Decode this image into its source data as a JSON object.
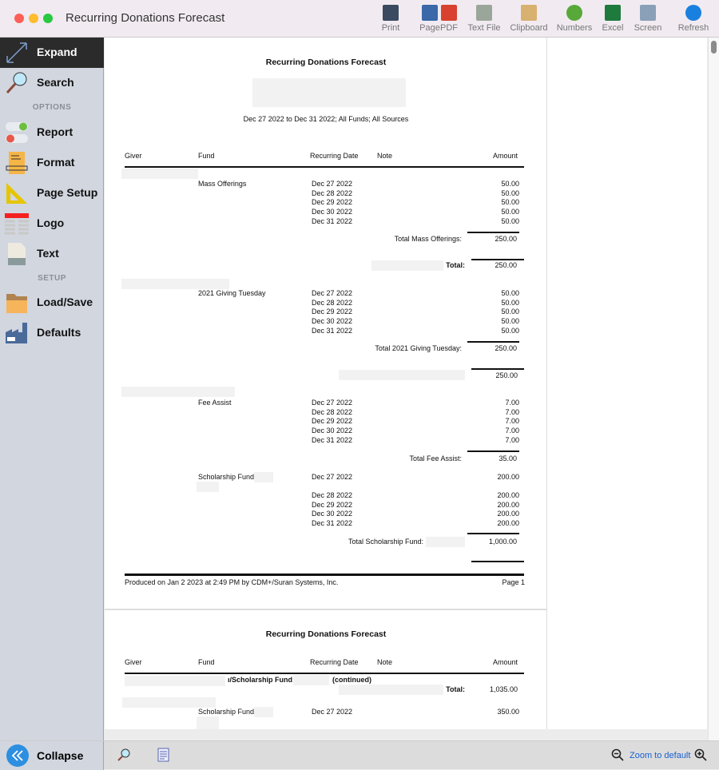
{
  "window": {
    "title": "Recurring Donations Forecast"
  },
  "toolbar": [
    {
      "label": "Print",
      "icon": "printer-icon"
    },
    {
      "label": "Page",
      "icon": "page-icon"
    },
    {
      "label": "PDF",
      "icon": "pdf-icon"
    },
    {
      "label": "Text File",
      "icon": "text-file-icon"
    },
    {
      "label": "Clipboard",
      "icon": "clipboard-icon"
    },
    {
      "label": "Numbers",
      "icon": "numbers-icon"
    },
    {
      "label": "Excel",
      "icon": "excel-icon"
    },
    {
      "label": "Screen",
      "icon": "screen-icon"
    },
    {
      "label": "Refresh",
      "icon": "refresh-icon"
    }
  ],
  "sidebar": {
    "expand": "Expand",
    "search": "Search",
    "options_header": "OPTIONS",
    "report": "Report",
    "format": "Format",
    "page_setup": "Page Setup",
    "logo": "Logo",
    "text": "Text",
    "setup_header": "SETUP",
    "load_save": "Load/Save",
    "defaults": "Defaults",
    "collapse": "Collapse"
  },
  "bottom": {
    "zoom_default": "Zoom to default"
  },
  "report": {
    "title": "Recurring Donations Forecast",
    "subtitle": "Dec 27 2022 to Dec 31 2022; All Funds; All Sources",
    "headers": {
      "giver": "Giver",
      "fund": "Fund",
      "date": "Recurring Date",
      "note": "Note",
      "amount": "Amount"
    },
    "g1": {
      "fund": "Mass Offerings",
      "dates": [
        "Dec 27 2022",
        "Dec 28 2022",
        "Dec 29 2022",
        "Dec 30 2022",
        "Dec 31 2022"
      ],
      "amounts": [
        "50.00",
        "50.00",
        "50.00",
        "50.00",
        "50.00"
      ],
      "fund_total_label": "Total Mass Offerings:",
      "fund_total": "250.00",
      "total_label": "Total:",
      "total": "250.00"
    },
    "g2": {
      "fund": "2021 Giving Tuesday",
      "dates": [
        "Dec 27 2022",
        "Dec 28 2022",
        "Dec 29 2022",
        "Dec 30 2022",
        "Dec 31 2022"
      ],
      "amounts": [
        "50.00",
        "50.00",
        "50.00",
        "50.00",
        "50.00"
      ],
      "fund_total_label": "Total 2021 Giving Tuesday:",
      "fund_total": "250.00",
      "total": "250.00"
    },
    "g3": {
      "fund": "Fee Assist",
      "dates": [
        "Dec 27 2022",
        "Dec 28 2022",
        "Dec 29 2022",
        "Dec 30 2022",
        "Dec 31 2022"
      ],
      "amounts": [
        "7.00",
        "7.00",
        "7.00",
        "7.00",
        "7.00"
      ],
      "fund_total_label": "Total Fee Assist:",
      "fund_total": "35.00",
      "fund2": "Scholarship Fund:",
      "dates2": [
        "Dec 27 2022",
        "Dec 28 2022",
        "Dec 29 2022",
        "Dec 30 2022",
        "Dec 31 2022"
      ],
      "amounts2": [
        "200.00",
        "200.00",
        "200.00",
        "200.00",
        "200.00"
      ],
      "fund2_total_label": "Total Scholarship Fund:",
      "fund2_total": "1,000.00"
    },
    "footer": {
      "produced": "Produced on Jan 2 2023 at 2:49 PM by CDM+/Suran Systems, Inc.",
      "page": "Page 1"
    },
    "page2": {
      "title": "Recurring Donations Forecast",
      "cont_fund": "ı/Scholarship Fund:",
      "continued": "(continued)",
      "total_label": "Total:",
      "total": "1,035.00",
      "fund": "Scholarship Fund:",
      "date": "Dec 27 2022",
      "amount": "350.00"
    }
  }
}
